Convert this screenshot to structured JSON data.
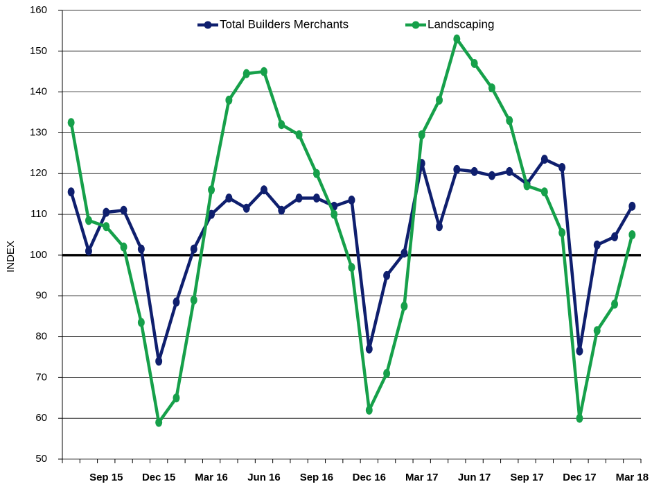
{
  "chart_data": {
    "type": "line",
    "categories": [
      null,
      null,
      "Sep 15",
      null,
      null,
      "Dec 15",
      null,
      null,
      "Mar 16",
      null,
      null,
      "Jun 16",
      null,
      null,
      "Sep 16",
      null,
      null,
      "Dec 16",
      null,
      null,
      "Mar 17",
      null,
      null,
      "Jun 17",
      null,
      null,
      "Sep 17",
      null,
      null,
      "Dec 17",
      null,
      null,
      "Mar 18"
    ],
    "series": [
      {
        "name": "Total Builders Merchants",
        "color": "#0f1f6e",
        "values": [
          115.5,
          101,
          110.5,
          111,
          101.5,
          74,
          88.5,
          101.5,
          110,
          114,
          111.5,
          116,
          111,
          114,
          114,
          112,
          113.5,
          77,
          95,
          100.5,
          122.5,
          107,
          121,
          120.5,
          119.5,
          120.5,
          117.5,
          123.5,
          121.5,
          76.5,
          102.5,
          104.5,
          112
        ]
      },
      {
        "name": "Landscaping",
        "color": "#16a04a",
        "values": [
          132.5,
          108.5,
          107,
          102,
          83.5,
          59,
          65,
          89,
          116,
          138,
          144.5,
          145,
          132,
          129.5,
          120,
          110,
          97,
          62,
          71,
          87.5,
          129.5,
          138,
          153,
          147,
          141,
          133,
          117,
          115.5,
          105.5,
          60,
          81.5,
          88,
          105
        ]
      }
    ],
    "y_label": "INDEX",
    "ylim": [
      50,
      160
    ],
    "yticks": [
      50,
      60,
      70,
      80,
      90,
      100,
      110,
      120,
      130,
      140,
      150,
      160
    ],
    "reference_line": 100,
    "grid": true,
    "legend": "top"
  }
}
